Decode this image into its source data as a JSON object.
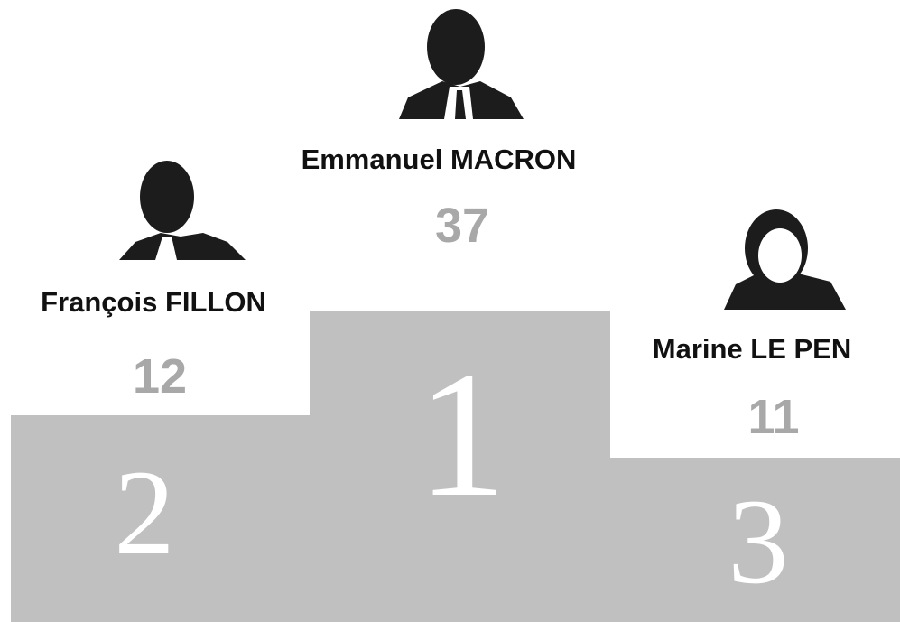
{
  "podium": [
    {
      "name": "François FILLON",
      "score": 12,
      "rank": 2
    },
    {
      "name": "Emmanuel MACRON",
      "score": 37,
      "rank": 1
    },
    {
      "name": "Marine LE PEN",
      "score": 11,
      "rank": 3
    }
  ]
}
